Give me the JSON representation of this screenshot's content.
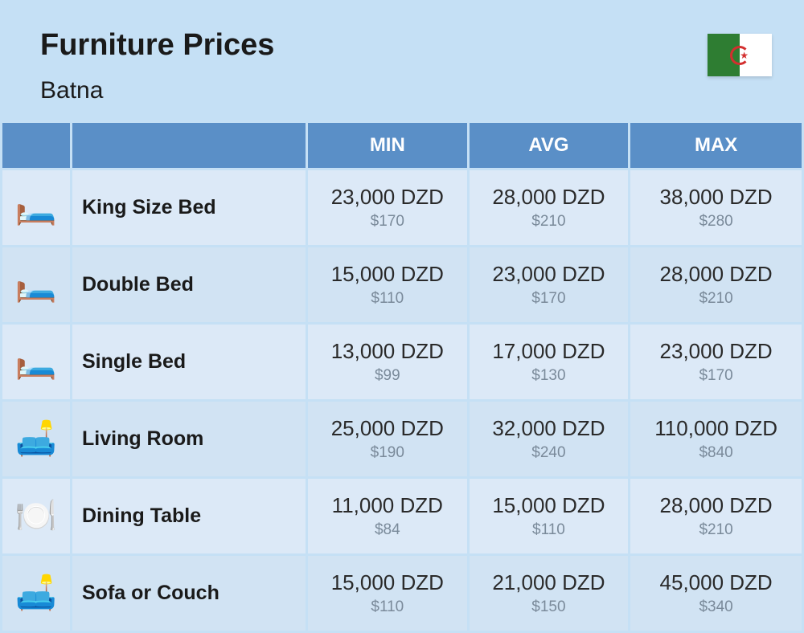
{
  "header": {
    "title": "Furniture Prices",
    "location": "Batna",
    "flag_colors": {
      "left": "#2e7d32",
      "right": "#ffffff",
      "symbol": "#d32f2f"
    }
  },
  "table": {
    "columns": [
      "MIN",
      "AVG",
      "MAX"
    ],
    "header_bg": "#5a8fc7",
    "header_text_color": "#ffffff",
    "row_bg_even": "#d1e3f3",
    "row_bg_odd": "#dce9f7",
    "rows": [
      {
        "icon": "🛏️",
        "name": "King Size Bed",
        "min": {
          "dzd": "23,000 DZD",
          "usd": "$170"
        },
        "avg": {
          "dzd": "28,000 DZD",
          "usd": "$210"
        },
        "max": {
          "dzd": "38,000 DZD",
          "usd": "$280"
        }
      },
      {
        "icon": "🛏️",
        "name": "Double Bed",
        "min": {
          "dzd": "15,000 DZD",
          "usd": "$110"
        },
        "avg": {
          "dzd": "23,000 DZD",
          "usd": "$170"
        },
        "max": {
          "dzd": "28,000 DZD",
          "usd": "$210"
        }
      },
      {
        "icon": "🛏️",
        "name": "Single Bed",
        "min": {
          "dzd": "13,000 DZD",
          "usd": "$99"
        },
        "avg": {
          "dzd": "17,000 DZD",
          "usd": "$130"
        },
        "max": {
          "dzd": "23,000 DZD",
          "usd": "$170"
        }
      },
      {
        "icon": "🛋️",
        "name": "Living Room",
        "min": {
          "dzd": "25,000 DZD",
          "usd": "$190"
        },
        "avg": {
          "dzd": "32,000 DZD",
          "usd": "$240"
        },
        "max": {
          "dzd": "110,000 DZD",
          "usd": "$840"
        }
      },
      {
        "icon": "🍽️",
        "name": "Dining Table",
        "min": {
          "dzd": "11,000 DZD",
          "usd": "$84"
        },
        "avg": {
          "dzd": "15,000 DZD",
          "usd": "$110"
        },
        "max": {
          "dzd": "28,000 DZD",
          "usd": "$210"
        }
      },
      {
        "icon": "🛋️",
        "name": "Sofa or Couch",
        "min": {
          "dzd": "15,000 DZD",
          "usd": "$110"
        },
        "avg": {
          "dzd": "21,000 DZD",
          "usd": "$150"
        },
        "max": {
          "dzd": "45,000 DZD",
          "usd": "$340"
        }
      }
    ]
  },
  "styling": {
    "page_bg": "#c5e0f5",
    "title_fontsize": 38,
    "subtitle_fontsize": 30,
    "price_main_color": "#2a2a2a",
    "price_sub_color": "#7a8a9a"
  }
}
